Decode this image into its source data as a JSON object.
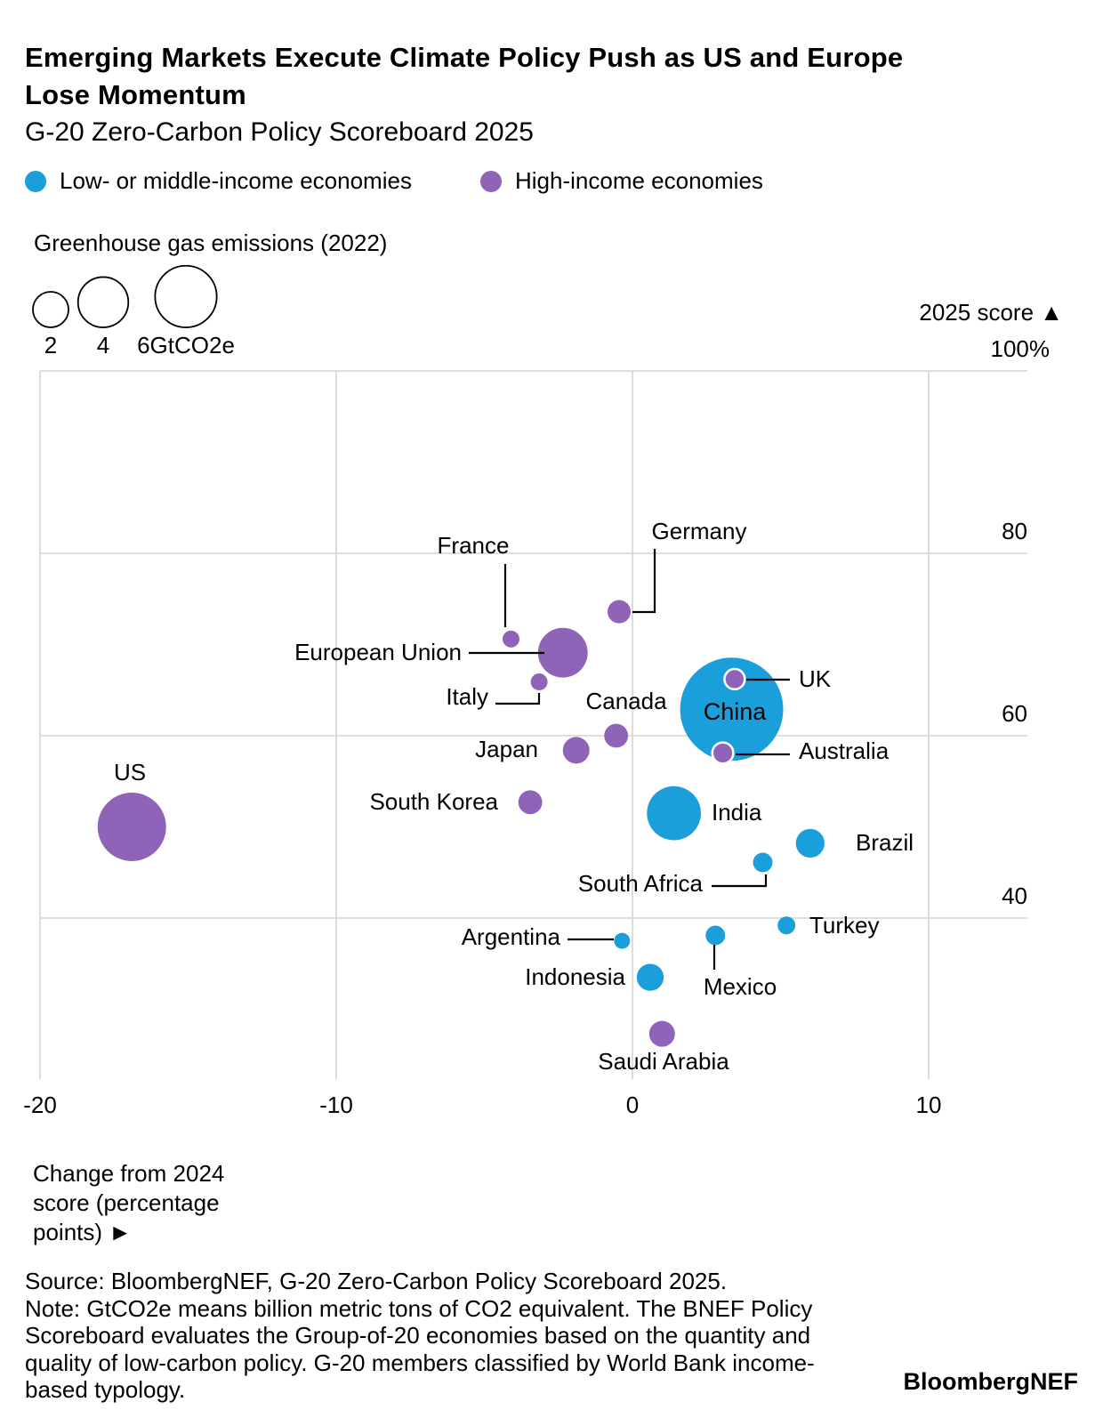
{
  "header": {
    "title_line1": "Emerging Markets Execute Climate Policy Push as US and Europe",
    "title_line2": "Lose Momentum",
    "subtitle": "G-20 Zero-Carbon Policy Scoreboard 2025"
  },
  "legend": {
    "items": [
      {
        "label": "Low- or middle-income economies",
        "group": "low_middle",
        "color": "#1B9FDA"
      },
      {
        "label": "High-income economies",
        "group": "high",
        "color": "#8E63B8"
      }
    ]
  },
  "size_legend": {
    "title": "Greenhouse gas emissions (2022)",
    "items": [
      {
        "label": "2",
        "gt": 2
      },
      {
        "label": "4",
        "gt": 4
      },
      {
        "label": "6GtCO2e",
        "gt": 6
      }
    ]
  },
  "axes": {
    "y_title": "2025 score ▲",
    "x_title": "Change from 2024 score (percentage points) ►",
    "y_ticks": [
      {
        "value": 100,
        "label": "100%"
      },
      {
        "value": 80,
        "label": "80"
      },
      {
        "value": 60,
        "label": "60"
      },
      {
        "value": 40,
        "label": "40"
      }
    ],
    "x_ticks": [
      {
        "value": -20,
        "label": "-20"
      },
      {
        "value": -10,
        "label": "-10"
      },
      {
        "value": 0,
        "label": "0"
      },
      {
        "value": 10,
        "label": "10"
      }
    ]
  },
  "chart_data": {
    "type": "scatter",
    "title": "G-20 Zero-Carbon Policy Scoreboard 2025",
    "xlabel": "Change from 2024 score (percentage points)",
    "ylabel": "2025 score (%)",
    "bubble_size": "Greenhouse gas emissions (2022), GtCO2e",
    "xlim": [
      -22,
      13.3
    ],
    "ylim": [
      22,
      100
    ],
    "grid": true,
    "points": [
      {
        "country": "US",
        "group": "high",
        "x": -16.9,
        "y": 50.0,
        "emissions_gt": 7.4
      },
      {
        "country": "France",
        "group": "high",
        "x": -4.1,
        "y": 70.6,
        "emissions_gt": 0.45
      },
      {
        "country": "European Union",
        "group": "high",
        "x": -2.35,
        "y": 69.1,
        "emissions_gt": 3.9
      },
      {
        "country": "Italy",
        "group": "high",
        "x": -3.15,
        "y": 65.9,
        "emissions_gt": 0.45
      },
      {
        "country": "Germany",
        "group": "high",
        "x": -0.45,
        "y": 73.6,
        "emissions_gt": 0.85
      },
      {
        "country": "UK",
        "group": "high",
        "x": 3.45,
        "y": 66.2,
        "emissions_gt": 0.65
      },
      {
        "country": "China",
        "group": "low_middle",
        "x": 3.35,
        "y": 62.9,
        "emissions_gt": 16.8
      },
      {
        "country": "Canada",
        "group": "high",
        "x": -0.55,
        "y": 60.0,
        "emissions_gt": 0.9
      },
      {
        "country": "Japan",
        "group": "high",
        "x": -1.9,
        "y": 58.4,
        "emissions_gt": 1.12
      },
      {
        "country": "Australia",
        "group": "high",
        "x": 3.05,
        "y": 58.1,
        "emissions_gt": 0.7
      },
      {
        "country": "South Korea",
        "group": "high",
        "x": -3.45,
        "y": 52.7,
        "emissions_gt": 0.9
      },
      {
        "country": "India",
        "group": "low_middle",
        "x": 1.4,
        "y": 51.5,
        "emissions_gt": 4.6
      },
      {
        "country": "Brazil",
        "group": "low_middle",
        "x": 6.0,
        "y": 48.2,
        "emissions_gt": 1.3
      },
      {
        "country": "South Africa",
        "group": "low_middle",
        "x": 4.4,
        "y": 46.1,
        "emissions_gt": 0.6
      },
      {
        "country": "Turkey",
        "group": "low_middle",
        "x": 5.2,
        "y": 39.2,
        "emissions_gt": 0.5
      },
      {
        "country": "Argentina",
        "group": "low_middle",
        "x": -0.35,
        "y": 37.5,
        "emissions_gt": 0.4
      },
      {
        "country": "Mexico",
        "group": "low_middle",
        "x": 2.8,
        "y": 38.1,
        "emissions_gt": 0.6
      },
      {
        "country": "Indonesia",
        "group": "low_middle",
        "x": 0.6,
        "y": 33.5,
        "emissions_gt": 1.15
      },
      {
        "country": "Saudi Arabia",
        "group": "high",
        "x": 1.0,
        "y": 27.3,
        "emissions_gt": 1.05
      }
    ]
  },
  "footer": {
    "source_lines": [
      "Source: BloombergNEF, G-20 Zero-Carbon Policy Scoreboard 2025.",
      "Note: GtCO2e means billion metric tons of CO2 equivalent. The BNEF Policy",
      "Scoreboard evaluates the Group-of-20 economies based on the quantity and",
      "quality of low-carbon policy. G-20 members classified by World Bank income-",
      "based typology.",
      "BloombergNEF"
    ],
    "brand": "BloombergNEF"
  },
  "colors": {
    "low_middle": "#1B9FDA",
    "high": "#8E63B8",
    "gridline": "#D9D9D9",
    "text": "#000000",
    "background": "#FFFFFF"
  }
}
